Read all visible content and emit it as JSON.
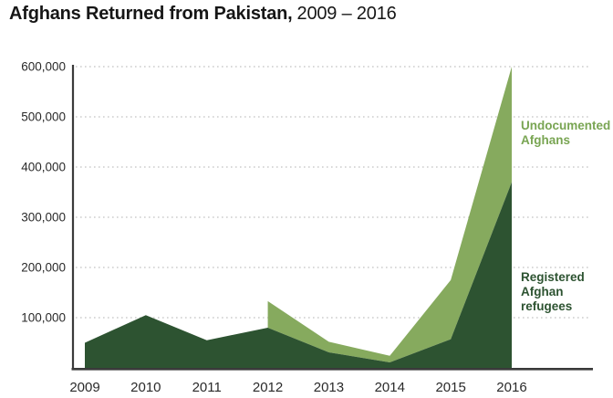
{
  "title": {
    "bold": "Afghans Returned from Pakistan,",
    "regular": "2009 – 2016"
  },
  "legend": {
    "undocumented_label": "Undocumented Afghans",
    "registered_label": "Registered Afghan refugees"
  },
  "colors": {
    "undocumented_area": "#86aa5e",
    "registered_area": "#2d5331",
    "undocumented_label_text": "#79a553",
    "registered_label_text": "#2d5331",
    "gridline": "#c2c2c2",
    "axis": "#3a3a3a",
    "tick_text": "#2a2a2a",
    "title_text": "#161616"
  },
  "chart_data": {
    "type": "area",
    "stacked": true,
    "title": "Afghans Returned from Pakistan, 2009 – 2016",
    "categories": [
      "2009",
      "2010",
      "2011",
      "2012",
      "2013",
      "2014",
      "2015",
      "2016"
    ],
    "series": [
      {
        "name": "Registered Afghan refugees",
        "values": [
          50000,
          105000,
          55000,
          80000,
          31000,
          11000,
          57000,
          370000
        ]
      },
      {
        "name": "Undocumented Afghans",
        "values": [
          0,
          0,
          0,
          53000,
          21000,
          13000,
          118000,
          230000
        ]
      }
    ],
    "totals": [
      50000,
      105000,
      55000,
      133000,
      52000,
      24000,
      175000,
      600000
    ],
    "xlabel": "",
    "ylabel": "",
    "ylim": [
      0,
      600000
    ],
    "ytick_interval": 100000,
    "ytick_labels": [
      "100,000",
      "200,000",
      "300,000",
      "400,000",
      "500,000",
      "600,000"
    ],
    "grid": "horizontal-dotted",
    "legend_position": "inline-right-annotations",
    "notes": "Undocumented Afghans series begins in 2012 with a vertical left edge; both areas end with a vertical right edge at 2016."
  }
}
